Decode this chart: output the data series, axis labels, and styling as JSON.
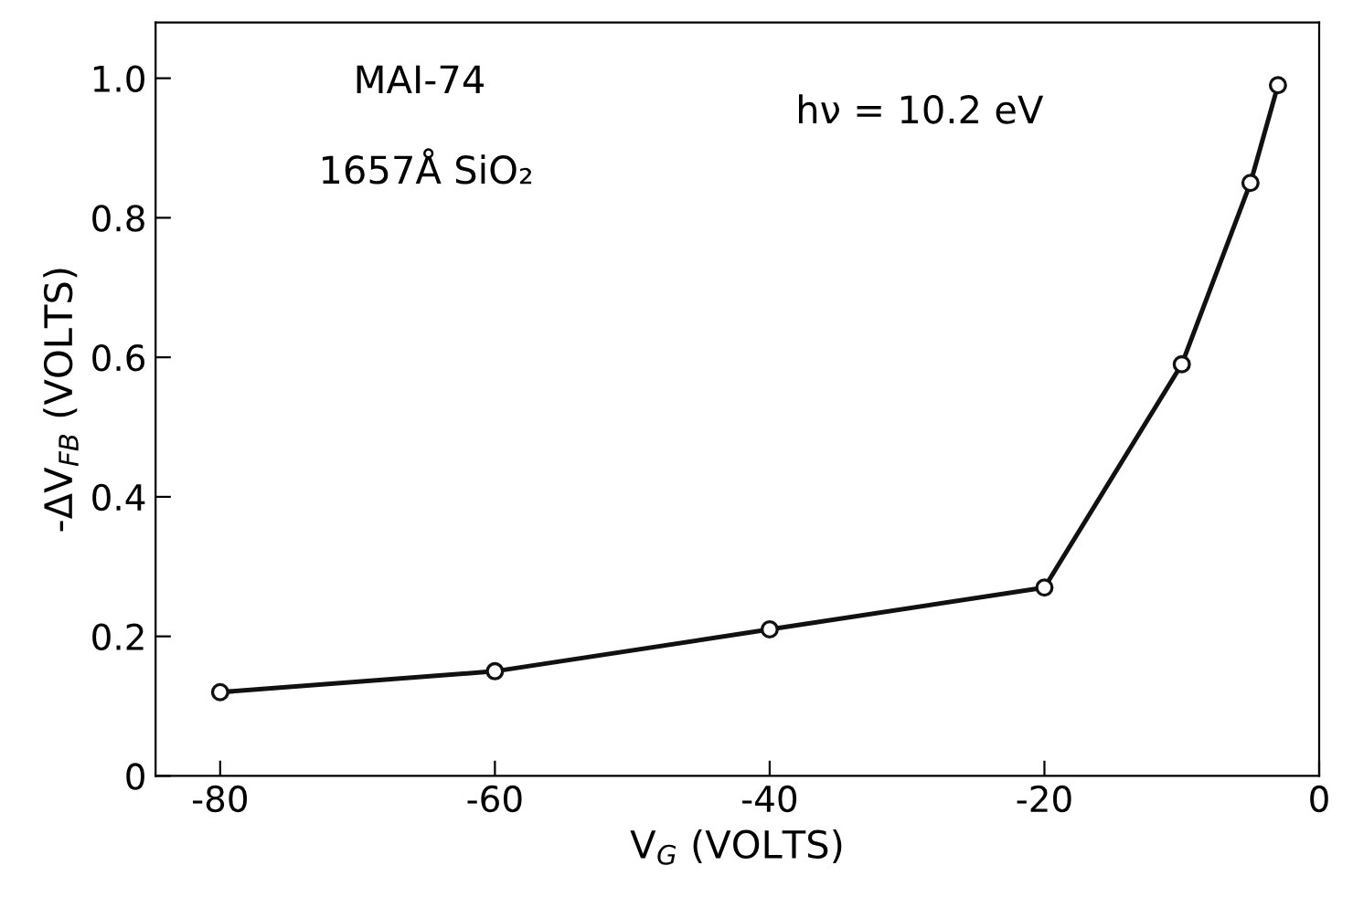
{
  "chart_data": {
    "type": "line",
    "xlabel": "V$_{G}$ (VOLTS)",
    "ylabel": "-ΔV$_{FB}$ (VOLTS)",
    "annotations": [
      "MAI-74",
      "1657Å SiO₂",
      "hν = 10.2 eV"
    ],
    "x": [
      -80,
      -60,
      -40,
      -20,
      -10,
      -5,
      -3
    ],
    "series": [
      {
        "color": "#111111",
        "values": [
          0.12,
          0.15,
          0.21,
          0.27,
          0.59,
          0.85,
          0.99
        ]
      }
    ],
    "xlim": [
      -84.7,
      0
    ],
    "ylim": [
      0,
      1.08
    ],
    "xticks": [
      -80,
      -60,
      -40,
      -20,
      0
    ],
    "yticks": [
      0,
      {
        "value": 0.2,
        "label": "0.2"
      },
      {
        "value": 0.4,
        "label": "0.4"
      },
      {
        "value": 0.6,
        "label": "0.6"
      },
      {
        "value": 0.8,
        "label": "0.8"
      },
      {
        "value": 1.0,
        "label": "1.0"
      }
    ],
    "marker": "circle",
    "line_style": "solid",
    "grid": false,
    "legend": false
  }
}
